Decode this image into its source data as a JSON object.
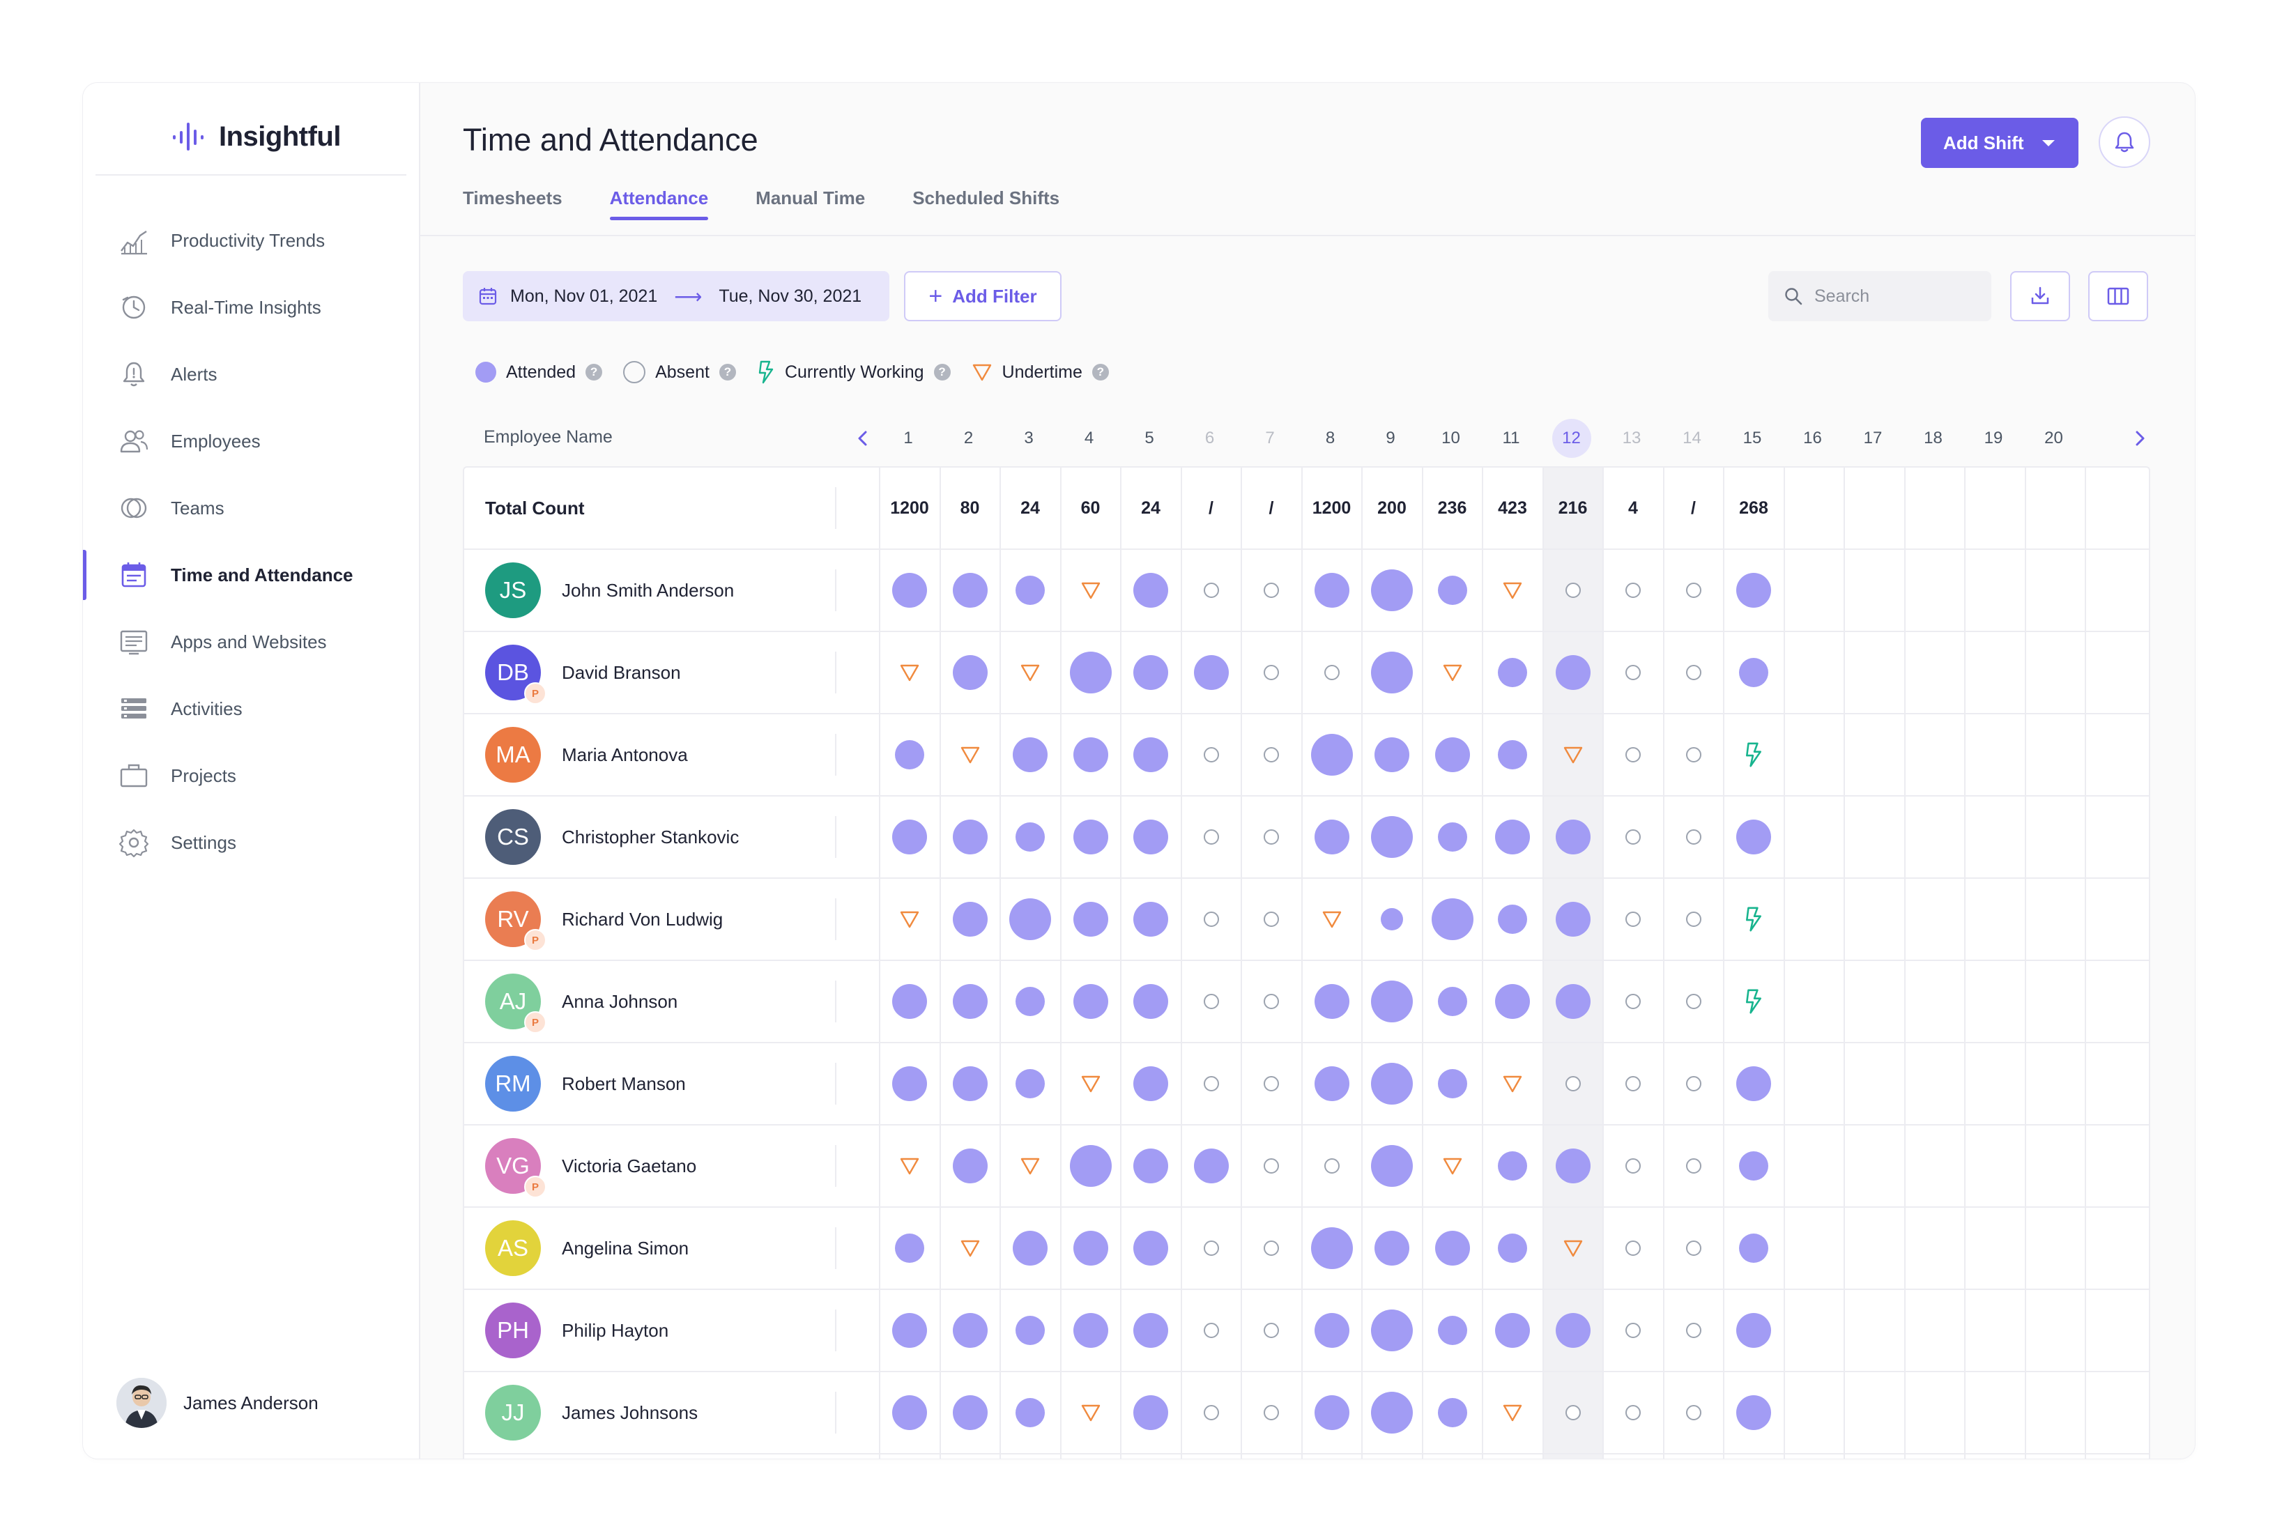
{
  "app": {
    "logo_text": "Insightful",
    "page_title": "Time and Attendance",
    "add_shift_label": "Add Shift"
  },
  "sidebar": {
    "items": [
      {
        "label": "Productivity Trends",
        "icon": "trend-chart-icon",
        "active": false
      },
      {
        "label": "Real-Time Insights",
        "icon": "clock-insights-icon",
        "active": false
      },
      {
        "label": "Alerts",
        "icon": "bell-alert-icon",
        "active": false
      },
      {
        "label": "Employees",
        "icon": "users-icon",
        "active": false
      },
      {
        "label": "Teams",
        "icon": "teams-circles-icon",
        "active": false
      },
      {
        "label": "Time and Attendance",
        "icon": "calendar-icon",
        "active": true
      },
      {
        "label": "Apps and Websites",
        "icon": "window-list-icon",
        "active": false
      },
      {
        "label": "Activities",
        "icon": "stacked-bars-icon",
        "active": false
      },
      {
        "label": "Projects",
        "icon": "briefcase-icon",
        "active": false
      },
      {
        "label": "Settings",
        "icon": "gear-icon",
        "active": false
      }
    ],
    "user_name": "James Anderson"
  },
  "tabs": [
    {
      "label": "Timesheets",
      "active": false
    },
    {
      "label": "Attendance",
      "active": true
    },
    {
      "label": "Manual Time",
      "active": false
    },
    {
      "label": "Scheduled Shifts",
      "active": false
    }
  ],
  "toolbar": {
    "date_from": "Mon, Nov 01, 2021",
    "date_to": "Tue, Nov 30, 2021",
    "add_filter_label": "Add Filter",
    "search_placeholder": "Search"
  },
  "legend": {
    "attended": "Attended",
    "absent": "Absent",
    "currently_working": "Currently Working",
    "undertime": "Undertime",
    "help_mark": "?"
  },
  "table": {
    "employee_column_label": "Employee Name",
    "total_label": "Total Count",
    "days": [
      "1",
      "2",
      "3",
      "4",
      "5",
      "6",
      "7",
      "8",
      "9",
      "10",
      "11",
      "12",
      "13",
      "14",
      "15",
      "16",
      "17",
      "18",
      "19",
      "20"
    ],
    "weekend_days": [
      "6",
      "7",
      "13",
      "14"
    ],
    "today": "12",
    "totals": [
      "1200",
      "80",
      "24",
      "60",
      "24",
      "/",
      "/",
      "1200",
      "200",
      "236",
      "423",
      "216",
      "4",
      "/",
      "268",
      "",
      "",
      "",
      "",
      ""
    ],
    "employees": [
      {
        "initials": "JS",
        "name": "John Smith Anderson",
        "color": "#1e9b80",
        "badge": "",
        "cells": [
          "a3",
          "a3",
          "a2",
          "u",
          "a3",
          "x",
          "x",
          "a3",
          "a4",
          "a2",
          "u",
          "x",
          "x",
          "x",
          "a3"
        ]
      },
      {
        "initials": "DB",
        "name": "David Branson",
        "color": "#5b54e0",
        "badge": "P",
        "cells": [
          "u",
          "a3",
          "u",
          "a4",
          "a3",
          "a3",
          "x",
          "x",
          "a4",
          "u",
          "a2",
          "a3",
          "x",
          "x",
          "a2"
        ]
      },
      {
        "initials": "MA",
        "name": "Maria Antonova",
        "color": "#ec7a43",
        "badge": "",
        "cells": [
          "a2",
          "u",
          "a3",
          "a3",
          "a3",
          "x",
          "x",
          "a4",
          "a3",
          "a3",
          "a2",
          "u",
          "x",
          "x",
          "w"
        ]
      },
      {
        "initials": "CS",
        "name": "Christopher Stankovic",
        "color": "#4e5d78",
        "badge": "",
        "cells": [
          "a3",
          "a3",
          "a2",
          "a3",
          "a3",
          "x",
          "x",
          "a3",
          "a4",
          "a2",
          "a3",
          "a3",
          "x",
          "x",
          "a3"
        ]
      },
      {
        "initials": "RV",
        "name": "Richard Von Ludwig",
        "color": "#ea7d52",
        "badge": "P",
        "cells": [
          "u",
          "a3",
          "a4",
          "a3",
          "a3",
          "x",
          "x",
          "u",
          "a1",
          "a4",
          "a2",
          "a3",
          "x",
          "x",
          "w"
        ]
      },
      {
        "initials": "AJ",
        "name": "Anna Johnson",
        "color": "#7fcf9d",
        "badge": "P",
        "cells": [
          "a3",
          "a3",
          "a2",
          "a3",
          "a3",
          "x",
          "x",
          "a3",
          "a4",
          "a2",
          "a3",
          "a3",
          "x",
          "x",
          "w"
        ]
      },
      {
        "initials": "RM",
        "name": "Robert Manson",
        "color": "#5d8fe6",
        "badge": "",
        "cells": [
          "a3",
          "a3",
          "a2",
          "u",
          "a3",
          "x",
          "x",
          "a3",
          "a4",
          "a2",
          "u",
          "x",
          "x",
          "x",
          "a3"
        ]
      },
      {
        "initials": "VG",
        "name": "Victoria Gaetano",
        "color": "#d97fbe",
        "badge": "P",
        "cells": [
          "u",
          "a3",
          "u",
          "a4",
          "a3",
          "a3",
          "x",
          "x",
          "a4",
          "u",
          "a2",
          "a3",
          "x",
          "x",
          "a2"
        ]
      },
      {
        "initials": "AS",
        "name": "Angelina Simon",
        "color": "#e2d33b",
        "badge": "",
        "cells": [
          "a2",
          "u",
          "a3",
          "a3",
          "a3",
          "x",
          "x",
          "a4",
          "a3",
          "a3",
          "a2",
          "u",
          "x",
          "x",
          "a2"
        ]
      },
      {
        "initials": "PH",
        "name": "Philip Hayton",
        "color": "#a963cc",
        "badge": "",
        "cells": [
          "a3",
          "a3",
          "a2",
          "a3",
          "a3",
          "x",
          "x",
          "a3",
          "a4",
          "a2",
          "a3",
          "a3",
          "x",
          "x",
          "a3"
        ]
      },
      {
        "initials": "JJ",
        "name": "James Johnsons",
        "color": "#7fcf9d",
        "badge": "",
        "cells": [
          "a3",
          "a3",
          "a2",
          "u",
          "a3",
          "x",
          "x",
          "a3",
          "a4",
          "a2",
          "u",
          "x",
          "x",
          "x",
          "a3"
        ]
      }
    ]
  },
  "colors": {
    "accent": "#6b5ce7",
    "attended": "#a29cf4",
    "undertime": "#f08a3e",
    "working": "#17b48e",
    "absent_stroke": "#9ca3af"
  }
}
